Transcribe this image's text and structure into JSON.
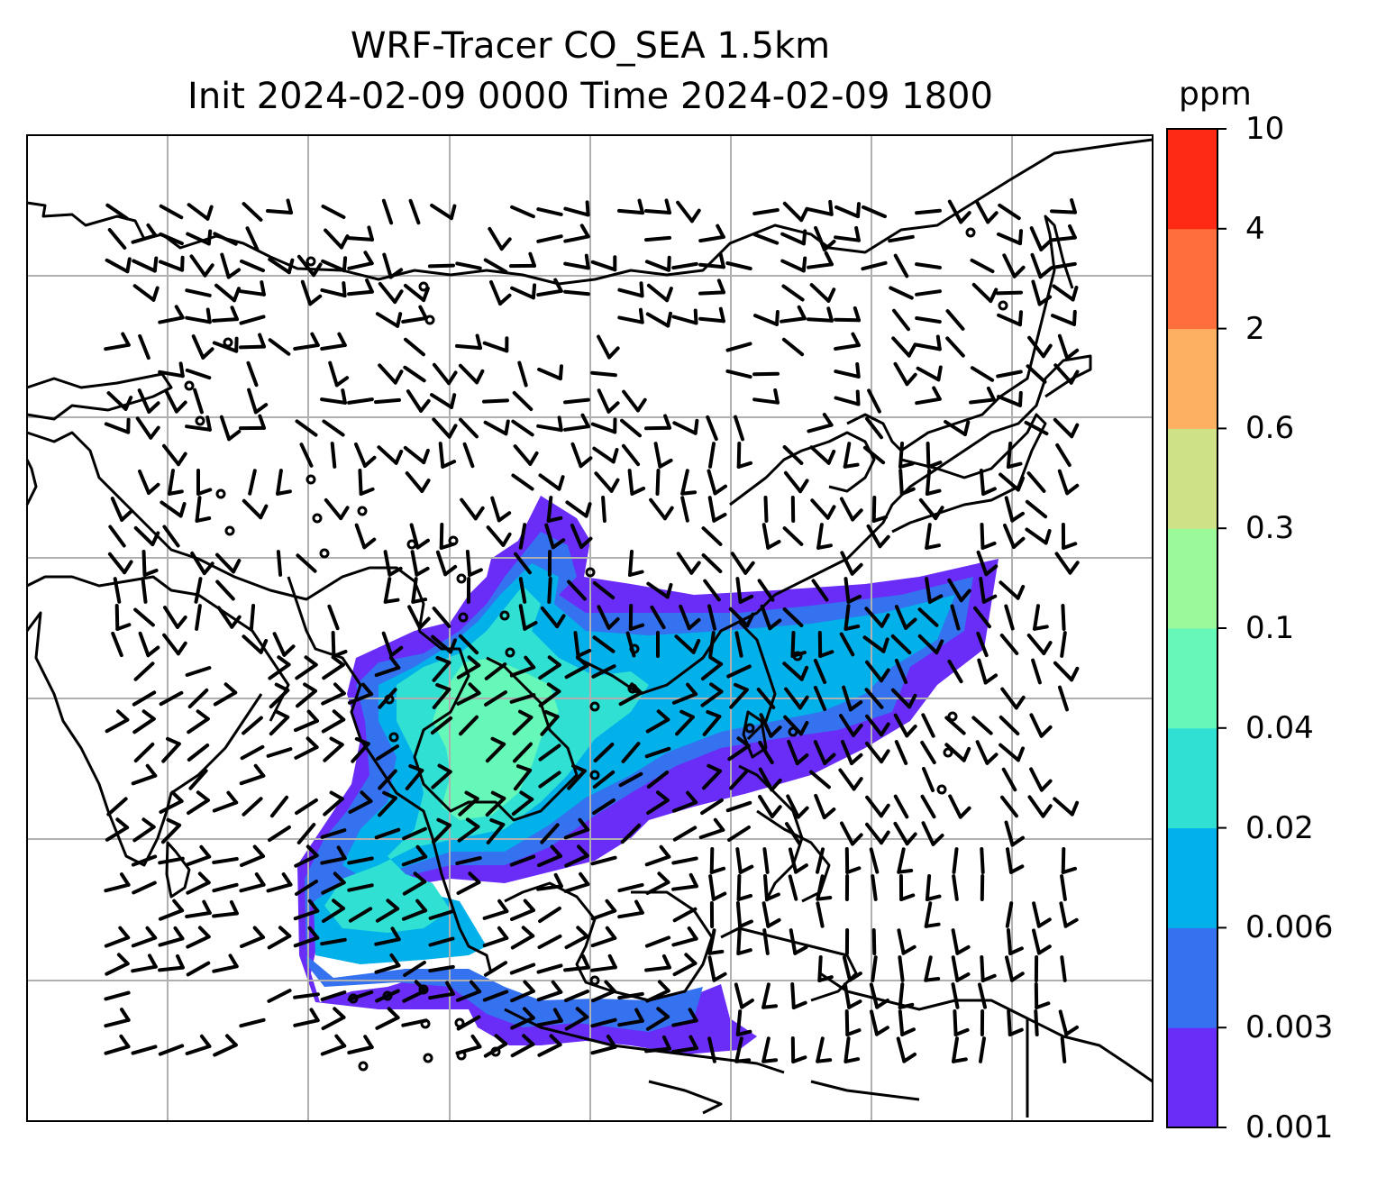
{
  "title_line1": "WRF-Tracer CO_SEA 1.5km",
  "title_line2": "Init 2024-02-09 0000 Time 2024-02-09 1800",
  "colorbar": {
    "unit": "ppm",
    "levels": [
      "0.001",
      "0.003",
      "0.006",
      "0.02",
      "0.04",
      "0.1",
      "0.3",
      "0.6",
      "2",
      "4",
      "10"
    ],
    "colors": [
      "#6a2cf7",
      "#3472f0",
      "#02b0ea",
      "#2fe0d3",
      "#66f8b8",
      "#9cf99a",
      "#cfe187",
      "#fdb061",
      "#ff6f3c",
      "#ff2a16"
    ]
  },
  "colors": {
    "coastline": "#000000",
    "gridline": "#b0b0b0",
    "wind_barb": "#000000"
  }
}
